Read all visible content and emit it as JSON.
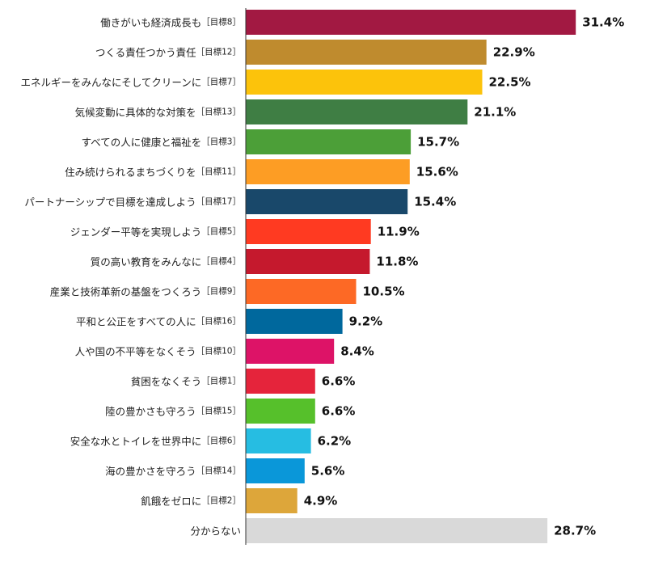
{
  "chart_data": {
    "type": "bar",
    "orientation": "horizontal",
    "xlim": [
      0,
      35
    ],
    "grid": false,
    "legend": "none",
    "bars": [
      {
        "label": "働きがいも経済成長も",
        "goal": "［目標8］",
        "value": 31.4,
        "value_label": "31.4%",
        "color": "#A21942"
      },
      {
        "label": "つくる責任つかう責任",
        "goal": "［目標12］",
        "value": 22.9,
        "value_label": "22.9%",
        "color": "#BF8B2E"
      },
      {
        "label": "エネルギーをみんなにそしてクリーンに",
        "goal": "［目標7］",
        "value": 22.5,
        "value_label": "22.5%",
        "color": "#FCC30B"
      },
      {
        "label": "気候変動に具体的な対策を",
        "goal": "［目標13］",
        "value": 21.1,
        "value_label": "21.1%",
        "color": "#3F7E44"
      },
      {
        "label": "すべての人に健康と福祉を",
        "goal": "［目標3］",
        "value": 15.7,
        "value_label": "15.7%",
        "color": "#4C9F38"
      },
      {
        "label": "住み続けられるまちづくりを",
        "goal": "［目標11］",
        "value": 15.6,
        "value_label": "15.6%",
        "color": "#FD9D24"
      },
      {
        "label": "パートナーシップで目標を達成しよう",
        "goal": "［目標17］",
        "value": 15.4,
        "value_label": "15.4%",
        "color": "#19486A"
      },
      {
        "label": "ジェンダー平等を実現しよう",
        "goal": "［目標5］",
        "value": 11.9,
        "value_label": "11.9%",
        "color": "#FF3A21"
      },
      {
        "label": "質の高い教育をみんなに",
        "goal": "［目標4］",
        "value": 11.8,
        "value_label": "11.8%",
        "color": "#C5192D"
      },
      {
        "label": "産業と技術革新の基盤をつくろう",
        "goal": "［目標9］",
        "value": 10.5,
        "value_label": "10.5%",
        "color": "#FD6925"
      },
      {
        "label": "平和と公正をすべての人に",
        "goal": "［目標16］",
        "value": 9.2,
        "value_label": "9.2%",
        "color": "#00689D"
      },
      {
        "label": "人や国の不平等をなくそう",
        "goal": "［目標10］",
        "value": 8.4,
        "value_label": "8.4%",
        "color": "#DD1367"
      },
      {
        "label": "貧困をなくそう",
        "goal": "［目標1］",
        "value": 6.6,
        "value_label": "6.6%",
        "color": "#E5243B"
      },
      {
        "label": "陸の豊かさも守ろう",
        "goal": "［目標15］",
        "value": 6.6,
        "value_label": "6.6%",
        "color": "#56C02B"
      },
      {
        "label": "安全な水とトイレを世界中に",
        "goal": "［目標6］",
        "value": 6.2,
        "value_label": "6.2%",
        "color": "#26BDE2"
      },
      {
        "label": "海の豊かさを守ろう",
        "goal": "［目標14］",
        "value": 5.6,
        "value_label": "5.6%",
        "color": "#0A97D9"
      },
      {
        "label": "飢餓をゼロに",
        "goal": "［目標2］",
        "value": 4.9,
        "value_label": "4.9%",
        "color": "#DDA63A"
      },
      {
        "label": "分からない",
        "goal": "",
        "value": 28.7,
        "value_label": "28.7%",
        "color": "#D9D9D9"
      }
    ]
  }
}
